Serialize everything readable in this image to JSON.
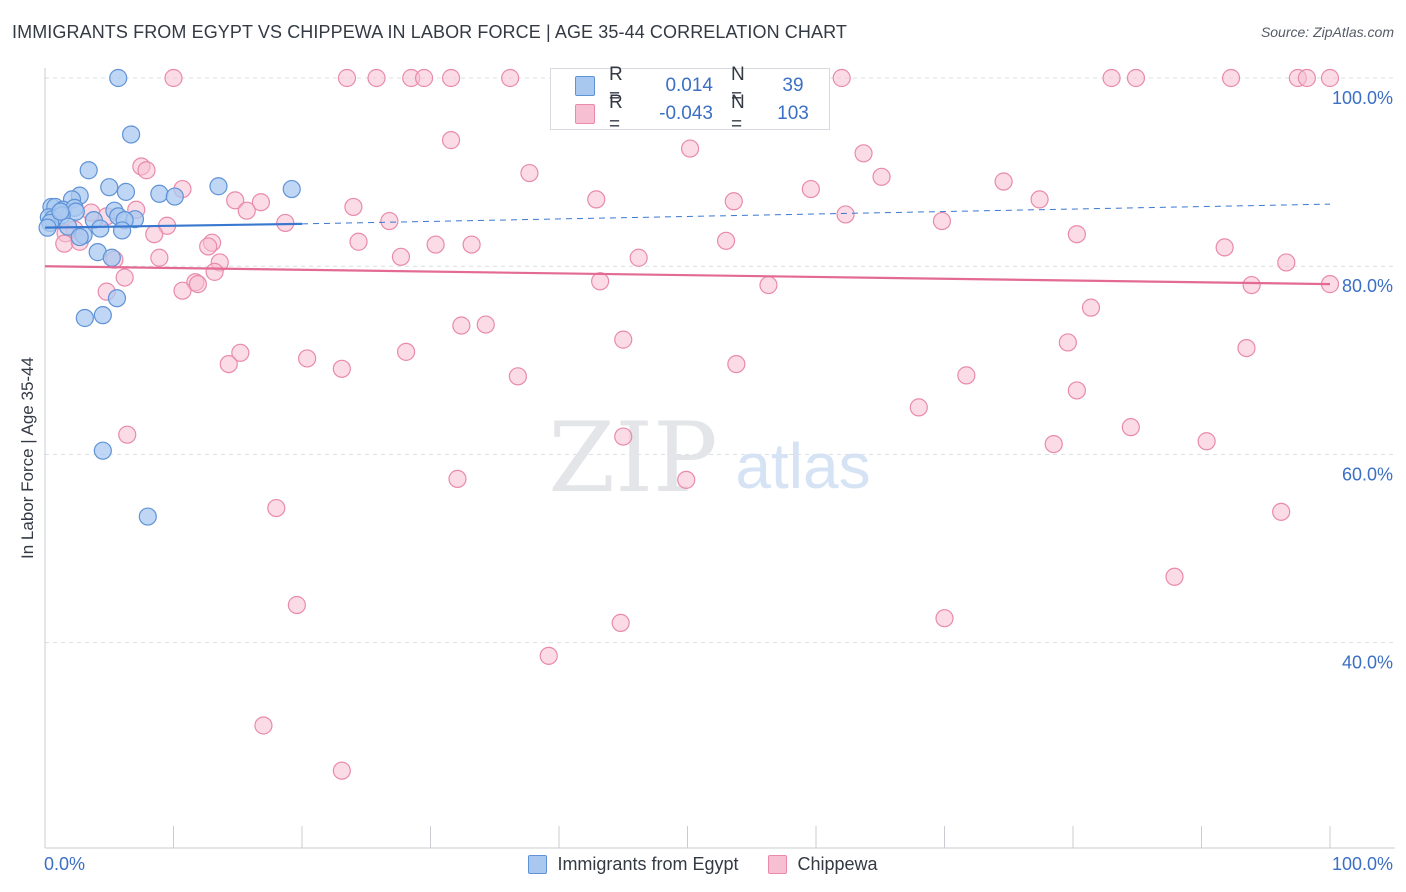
{
  "title": "IMMIGRANTS FROM EGYPT VS CHIPPEWA IN LABOR FORCE | AGE 35-44 CORRELATION CHART",
  "source": "Source: ZipAtlas.com",
  "watermark": {
    "zip": "ZIP",
    "atlas": "atlas"
  },
  "stats": [
    {
      "r_label": "R =",
      "r_value": "0.014",
      "n_label": "N =",
      "n_value": "39"
    },
    {
      "r_label": "R =",
      "r_value": "-0.043",
      "n_label": "N =",
      "n_value": "103"
    }
  ],
  "colors": {
    "egypt_fill": "#a9c8f0",
    "egypt_stroke": "#5f93d6",
    "egypt_line": "#3a78d0",
    "chippewa_fill": "#f7c0d2",
    "chippewa_stroke": "#e98aab",
    "chippewa_line": "#e36a93",
    "tick_label": "#3b6fc4",
    "grid": "#dcdfe4"
  },
  "chart_data": {
    "type": "scatter",
    "ylabel": "In Labor Force | Age 35-44",
    "xlim": [
      0,
      100
    ],
    "ylim": [
      18.5,
      100
    ],
    "x_tick_labels": [
      "0.0%",
      "100.0%"
    ],
    "y_ticks": [
      {
        "value": 100,
        "label": "100.0%"
      },
      {
        "value": 80,
        "label": "80.0%"
      },
      {
        "value": 60,
        "label": "60.0%"
      },
      {
        "value": 40,
        "label": "40.0%"
      }
    ],
    "grid": "horizontal dashed",
    "legend_placement": "bottom-center",
    "series": [
      {
        "name": "Immigrants from Egypt",
        "points": [
          [
            5.7,
            100
          ],
          [
            6.7,
            94
          ],
          [
            3.4,
            90.2
          ],
          [
            5.0,
            88.4
          ],
          [
            6.3,
            87.9
          ],
          [
            8.9,
            87.7
          ],
          [
            10.1,
            87.4
          ],
          [
            13.5,
            88.5
          ],
          [
            19.2,
            88.2
          ],
          [
            2.7,
            87.5
          ],
          [
            2.1,
            87.1
          ],
          [
            0.5,
            86.3
          ],
          [
            0.8,
            86.3
          ],
          [
            1.4,
            86.0
          ],
          [
            2.3,
            86.2
          ],
          [
            5.4,
            85.9
          ],
          [
            2.4,
            85.8
          ],
          [
            0.3,
            85.2
          ],
          [
            0.6,
            85.0
          ],
          [
            1.3,
            85.4
          ],
          [
            5.7,
            85.3
          ],
          [
            7.0,
            85.0
          ],
          [
            3.8,
            84.9
          ],
          [
            0.4,
            84.6
          ],
          [
            6.2,
            84.9
          ],
          [
            0.2,
            84.1
          ],
          [
            1.8,
            84.2
          ],
          [
            4.3,
            84.0
          ],
          [
            3.0,
            83.3
          ],
          [
            2.7,
            83.1
          ],
          [
            6.0,
            83.8
          ],
          [
            4.1,
            81.5
          ],
          [
            5.2,
            80.9
          ],
          [
            5.6,
            76.6
          ],
          [
            4.5,
            74.8
          ],
          [
            3.1,
            74.5
          ],
          [
            4.5,
            60.4
          ],
          [
            8.0,
            53.4
          ],
          [
            1.2,
            85.8
          ]
        ],
        "trend": {
          "x": [
            0,
            20
          ],
          "y": [
            84.1,
            84.5
          ]
        },
        "trend_extension": {
          "x": [
            20,
            100
          ],
          "y": [
            84.5,
            86.6
          ]
        }
      },
      {
        "name": "Chippewa",
        "points": [
          [
            10.0,
            100
          ],
          [
            23.5,
            100
          ],
          [
            25.8,
            100
          ],
          [
            28.5,
            100
          ],
          [
            29.5,
            100
          ],
          [
            31.6,
            100
          ],
          [
            36.2,
            100
          ],
          [
            49.4,
            100
          ],
          [
            62.0,
            100
          ],
          [
            84.9,
            100
          ],
          [
            92.3,
            100
          ],
          [
            97.5,
            100
          ],
          [
            98.2,
            100
          ],
          [
            100,
            100
          ],
          [
            83.0,
            100
          ],
          [
            47.4,
            97.5
          ],
          [
            56.7,
            95.5
          ],
          [
            31.6,
            93.4
          ],
          [
            50.2,
            92.5
          ],
          [
            63.7,
            92.0
          ],
          [
            7.5,
            90.6
          ],
          [
            7.9,
            90.2
          ],
          [
            37.7,
            89.9
          ],
          [
            65.1,
            89.5
          ],
          [
            74.6,
            89.0
          ],
          [
            59.6,
            88.2
          ],
          [
            10.7,
            88.2
          ],
          [
            14.8,
            87.0
          ],
          [
            16.8,
            86.8
          ],
          [
            42.9,
            87.1
          ],
          [
            53.6,
            86.9
          ],
          [
            77.4,
            87.1
          ],
          [
            24.0,
            86.3
          ],
          [
            15.7,
            85.9
          ],
          [
            7.1,
            86.0
          ],
          [
            3.6,
            85.7
          ],
          [
            4.8,
            85.3
          ],
          [
            9.5,
            84.3
          ],
          [
            18.7,
            84.6
          ],
          [
            26.8,
            84.8
          ],
          [
            62.3,
            85.5
          ],
          [
            69.8,
            84.8
          ],
          [
            2.3,
            83.9
          ],
          [
            1.6,
            83.5
          ],
          [
            8.5,
            83.4
          ],
          [
            24.4,
            82.6
          ],
          [
            30.4,
            82.3
          ],
          [
            33.2,
            82.3
          ],
          [
            13.0,
            82.5
          ],
          [
            12.7,
            82.1
          ],
          [
            53.0,
            82.7
          ],
          [
            80.3,
            83.4
          ],
          [
            1.5,
            82.4
          ],
          [
            2.7,
            82.6
          ],
          [
            91.8,
            82.0
          ],
          [
            5.4,
            80.7
          ],
          [
            8.9,
            80.9
          ],
          [
            27.7,
            81.0
          ],
          [
            46.2,
            80.9
          ],
          [
            13.6,
            80.4
          ],
          [
            13.2,
            79.4
          ],
          [
            96.6,
            80.4
          ],
          [
            6.2,
            78.8
          ],
          [
            11.7,
            78.3
          ],
          [
            11.9,
            78.1
          ],
          [
            10.7,
            77.4
          ],
          [
            4.8,
            77.3
          ],
          [
            43.2,
            78.4
          ],
          [
            56.3,
            78.0
          ],
          [
            93.9,
            78.0
          ],
          [
            100,
            78.1
          ],
          [
            81.4,
            75.6
          ],
          [
            32.4,
            73.7
          ],
          [
            34.3,
            73.8
          ],
          [
            45.0,
            72.2
          ],
          [
            79.6,
            71.9
          ],
          [
            93.5,
            71.3
          ],
          [
            15.2,
            70.8
          ],
          [
            20.4,
            70.2
          ],
          [
            23.1,
            69.1
          ],
          [
            14.3,
            69.6
          ],
          [
            28.1,
            70.9
          ],
          [
            36.8,
            68.3
          ],
          [
            53.8,
            69.6
          ],
          [
            71.7,
            68.4
          ],
          [
            80.3,
            66.8
          ],
          [
            68.0,
            65.0
          ],
          [
            84.5,
            62.9
          ],
          [
            78.5,
            61.1
          ],
          [
            90.4,
            61.4
          ],
          [
            6.4,
            62.1
          ],
          [
            45.0,
            61.9
          ],
          [
            49.9,
            57.3
          ],
          [
            32.1,
            57.4
          ],
          [
            18.0,
            54.3
          ],
          [
            96.2,
            53.9
          ],
          [
            87.9,
            47.0
          ],
          [
            19.6,
            44.0
          ],
          [
            70.0,
            42.6
          ],
          [
            44.8,
            42.1
          ],
          [
            39.2,
            38.6
          ],
          [
            17.0,
            31.2
          ],
          [
            23.1,
            26.4
          ]
        ],
        "trend": {
          "x": [
            0,
            100
          ],
          "y": [
            80.0,
            78.1
          ]
        }
      }
    ]
  }
}
